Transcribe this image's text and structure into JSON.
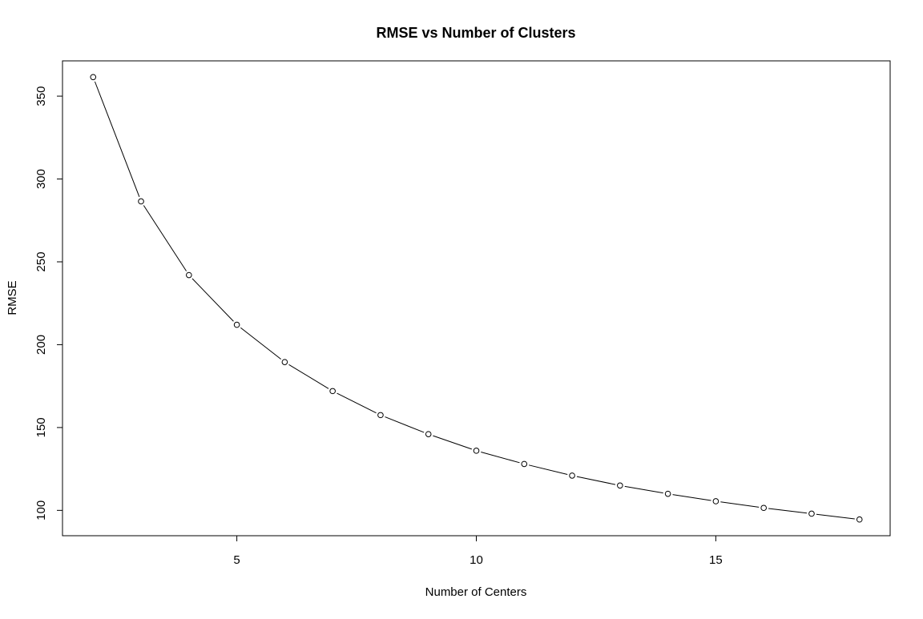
{
  "chart_data": {
    "type": "line",
    "title": "RMSE vs Number of Clusters",
    "xlabel": "Number of Centers",
    "ylabel": "RMSE",
    "x": [
      2,
      3,
      4,
      5,
      6,
      7,
      8,
      9,
      10,
      11,
      12,
      13,
      14,
      15,
      16,
      17,
      18
    ],
    "series": [
      {
        "values": [
          361.5,
          286.5,
          242.0,
          212.0,
          189.5,
          172.0,
          157.5,
          146.0,
          136.0,
          128.0,
          121.0,
          115.0,
          110.0,
          105.5,
          101.5,
          98.0,
          94.5
        ],
        "marker": "open-circle",
        "line_style": "solid",
        "color": "#000000"
      }
    ],
    "xticks": [
      5,
      10,
      15
    ],
    "yticks": [
      100,
      150,
      200,
      250,
      300,
      350
    ],
    "xlim": [
      1.36,
      18.64
    ],
    "ylim": [
      84.7,
      371.3
    ],
    "grid": false,
    "legend": "none"
  }
}
